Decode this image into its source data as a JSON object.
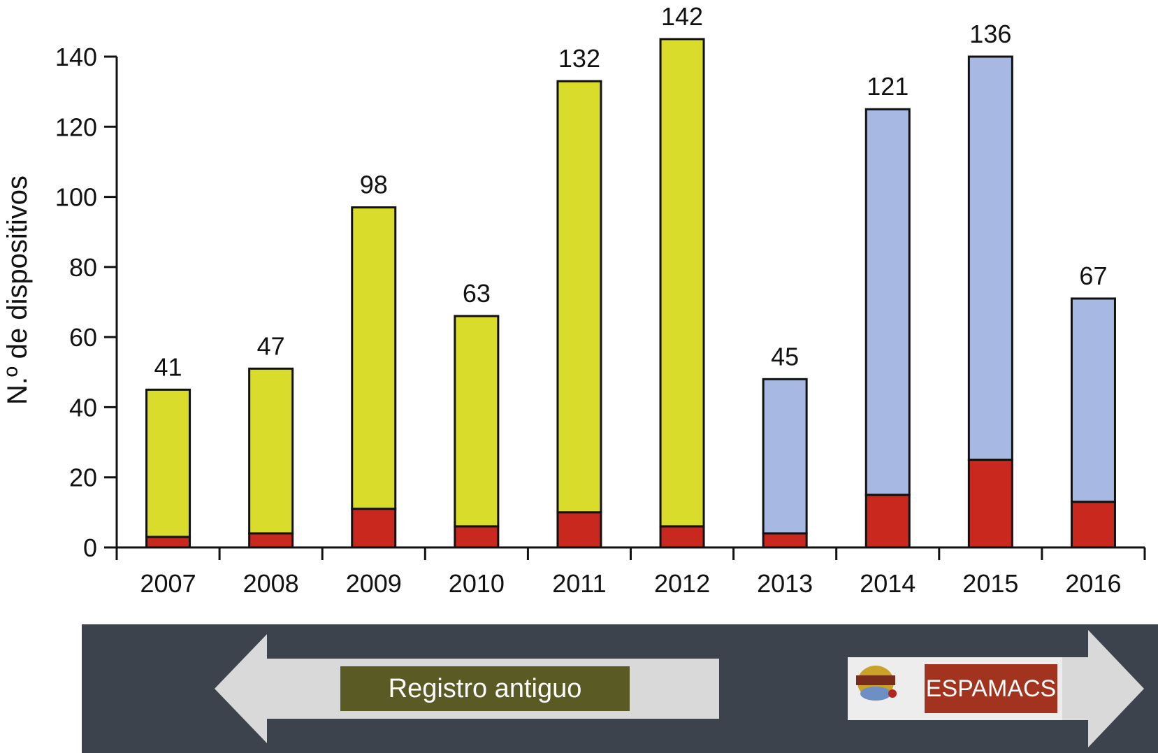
{
  "chart_data": {
    "type": "bar",
    "stacked": true,
    "ylabel": "N.º de dispositivos",
    "xlabel": "",
    "ylim": [
      0,
      140
    ],
    "yticks": [
      0,
      20,
      40,
      60,
      80,
      100,
      120,
      140
    ],
    "categories": [
      "2007",
      "2008",
      "2009",
      "2010",
      "2011",
      "2012",
      "2013",
      "2014",
      "2015",
      "2016"
    ],
    "totals": [
      41,
      47,
      98,
      63,
      132,
      142,
      45,
      121,
      136,
      67
    ],
    "total_labels": [
      "41",
      "47",
      "98",
      "63",
      "132",
      "142",
      "45",
      "121",
      "136",
      "67"
    ],
    "bar_tops": [
      45,
      51,
      97,
      66,
      133,
      145,
      48,
      125,
      140,
      71
    ],
    "red_values": [
      3,
      4,
      11,
      6,
      10,
      6,
      4,
      15,
      25,
      13
    ],
    "colors": {
      "bottom": "#c8281e",
      "registro": "#d9dc2a",
      "espamacs": "#a7b9e2",
      "outline": "#111111"
    },
    "registro_years": [
      "2007",
      "2008",
      "2009",
      "2010",
      "2011",
      "2012"
    ],
    "espamacs_years": [
      "2013",
      "2014",
      "2015",
      "2016"
    ],
    "grid": false,
    "legend": "none"
  },
  "banner": {
    "left_label": "Registro antiguo",
    "right_label": "ESPAMACS",
    "logo_icon": "espamacs-logo-icon",
    "colors": {
      "background": "#3d434d",
      "arrow": "#d9d9d9",
      "left_label_bg": "#5a5a24",
      "right_label_bg": "#a2331f"
    }
  }
}
